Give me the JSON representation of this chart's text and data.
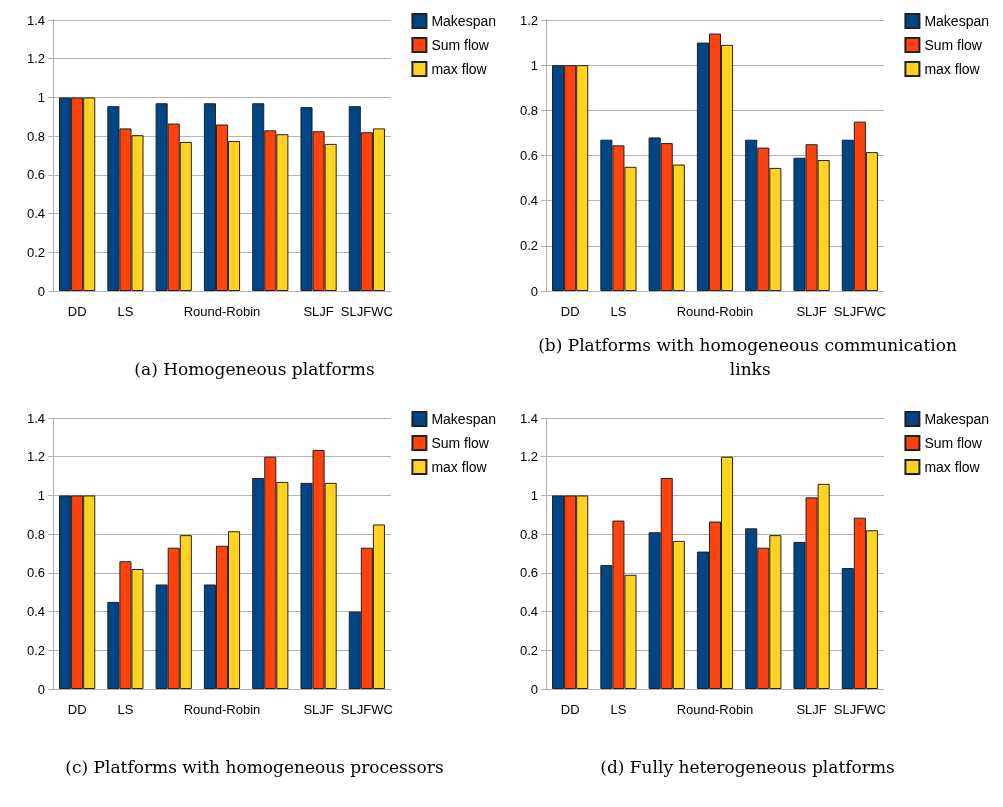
{
  "chart_data": [
    {
      "type": "bar",
      "title": "(a) Homogeneous platforms",
      "categories": [
        "DD",
        "LS",
        null,
        "Round-Robin",
        null,
        "SLJF",
        "SLJFWC"
      ],
      "series": [
        {
          "name": "Makespan",
          "color": "#004586",
          "values": [
            1,
            0.955,
            0.97,
            0.97,
            0.97,
            0.95,
            0.955
          ]
        },
        {
          "name": "Sum flow",
          "color": "#ff420e",
          "values": [
            1,
            0.84,
            0.865,
            0.86,
            0.83,
            0.825,
            0.82
          ]
        },
        {
          "name": "max flow",
          "color": "#ffd320",
          "values": [
            1,
            0.805,
            0.77,
            0.775,
            0.81,
            0.76,
            0.84
          ]
        }
      ],
      "ylim": [
        0,
        1.4
      ],
      "yticks": [
        0,
        0.2,
        0.4,
        0.6,
        0.8,
        1,
        1.2,
        1.4
      ],
      "grid": "y",
      "legend": "top right"
    },
    {
      "type": "bar",
      "title": "(b) Platforms with homogeneous communication links",
      "categories": [
        "DD",
        "LS",
        null,
        "Round-Robin",
        null,
        "SLJF",
        "SLJFWC"
      ],
      "series": [
        {
          "name": "Makespan",
          "color": "#004586",
          "values": [
            1,
            0.67,
            0.68,
            1.1,
            0.67,
            0.59,
            0.67
          ]
        },
        {
          "name": "Sum flow",
          "color": "#ff420e",
          "values": [
            1,
            0.645,
            0.655,
            1.14,
            0.635,
            0.65,
            0.75
          ]
        },
        {
          "name": "max flow",
          "color": "#ffd320",
          "values": [
            1,
            0.55,
            0.56,
            1.09,
            0.545,
            0.58,
            0.615
          ]
        }
      ],
      "ylim": [
        0,
        1.2
      ],
      "yticks": [
        0,
        0.2,
        0.4,
        0.6,
        0.8,
        1,
        1.2
      ],
      "grid": "y",
      "legend": "top right"
    },
    {
      "type": "bar",
      "title": "(c) Platforms with homogeneous processors",
      "categories": [
        "DD",
        "LS",
        null,
        "Round-Robin",
        null,
        "SLJF",
        "SLJFWC"
      ],
      "series": [
        {
          "name": "Makespan",
          "color": "#004586",
          "values": [
            1,
            0.45,
            0.54,
            0.54,
            1.09,
            1.065,
            0.4
          ]
        },
        {
          "name": "Sum flow",
          "color": "#ff420e",
          "values": [
            1,
            0.66,
            0.73,
            0.74,
            1.2,
            1.235,
            0.73
          ]
        },
        {
          "name": "max flow",
          "color": "#ffd320",
          "values": [
            1,
            0.62,
            0.795,
            0.815,
            1.07,
            1.065,
            0.85
          ]
        }
      ],
      "ylim": [
        0,
        1.4
      ],
      "yticks": [
        0,
        0.2,
        0.4,
        0.6,
        0.8,
        1,
        1.2,
        1.4
      ],
      "grid": "y",
      "legend": "top right"
    },
    {
      "type": "bar",
      "title": "(d) Fully heterogeneous platforms",
      "categories": [
        "DD",
        "LS",
        null,
        "Round-Robin",
        null,
        "SLJF",
        "SLJFWC"
      ],
      "series": [
        {
          "name": "Makespan",
          "color": "#004586",
          "values": [
            1,
            0.64,
            0.81,
            0.71,
            0.83,
            0.76,
            0.625
          ]
        },
        {
          "name": "Sum flow",
          "color": "#ff420e",
          "values": [
            1,
            0.87,
            1.09,
            0.865,
            0.73,
            0.99,
            0.885
          ]
        },
        {
          "name": "max flow",
          "color": "#ffd320",
          "values": [
            1,
            0.59,
            0.765,
            1.2,
            0.795,
            1.06,
            0.82
          ]
        }
      ],
      "ylim": [
        0,
        1.4
      ],
      "yticks": [
        0,
        0.2,
        0.4,
        0.6,
        0.8,
        1,
        1.2,
        1.4
      ],
      "grid": "y",
      "legend": "top right"
    }
  ]
}
